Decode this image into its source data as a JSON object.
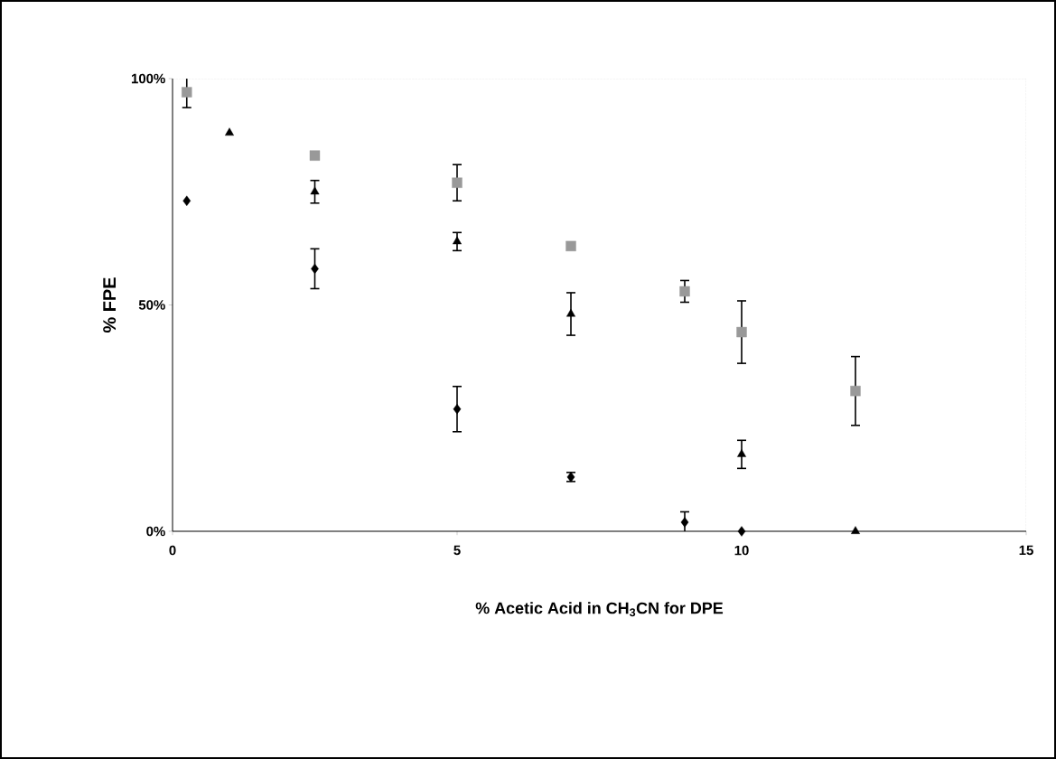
{
  "chart_data": {
    "type": "scatter",
    "xlabel": "% Acetic Acid in CH$_{3}$CN for DPE",
    "ylabel": "% FPE",
    "xlim": [
      0,
      15
    ],
    "xticks": [
      0,
      5,
      10,
      15
    ],
    "ylim": [
      0,
      100
    ],
    "yticks": [
      {
        "value": 0,
        "label": "0%"
      },
      {
        "value": 50,
        "label": "50%"
      },
      {
        "value": 100,
        "label": "100%"
      }
    ],
    "grid": false,
    "series": [
      {
        "color": "#000000",
        "marker": "diamond",
        "x": [
          0.25,
          2.5,
          5,
          7,
          9,
          10
        ],
        "values": [
          73,
          58,
          27,
          12,
          2,
          0
        ],
        "errors": [
          null,
          4.4,
          5,
          1,
          2.3,
          null
        ]
      },
      {
        "color": "#999999",
        "marker": "square",
        "x": [
          0.25,
          2.5,
          5,
          7,
          9,
          10,
          12
        ],
        "values": [
          97,
          83,
          77,
          63,
          53,
          44,
          31
        ],
        "errors": [
          3.4,
          null,
          4,
          null,
          2.4,
          6.9,
          7.6
        ]
      },
      {
        "color": "#000000",
        "marker": "triangle",
        "x": [
          1,
          2.5,
          5,
          7,
          10,
          12
        ],
        "values": [
          88,
          75,
          64,
          48,
          17,
          0
        ],
        "errors": [
          null,
          2.5,
          2,
          4.7,
          3.1,
          null
        ]
      }
    ]
  }
}
